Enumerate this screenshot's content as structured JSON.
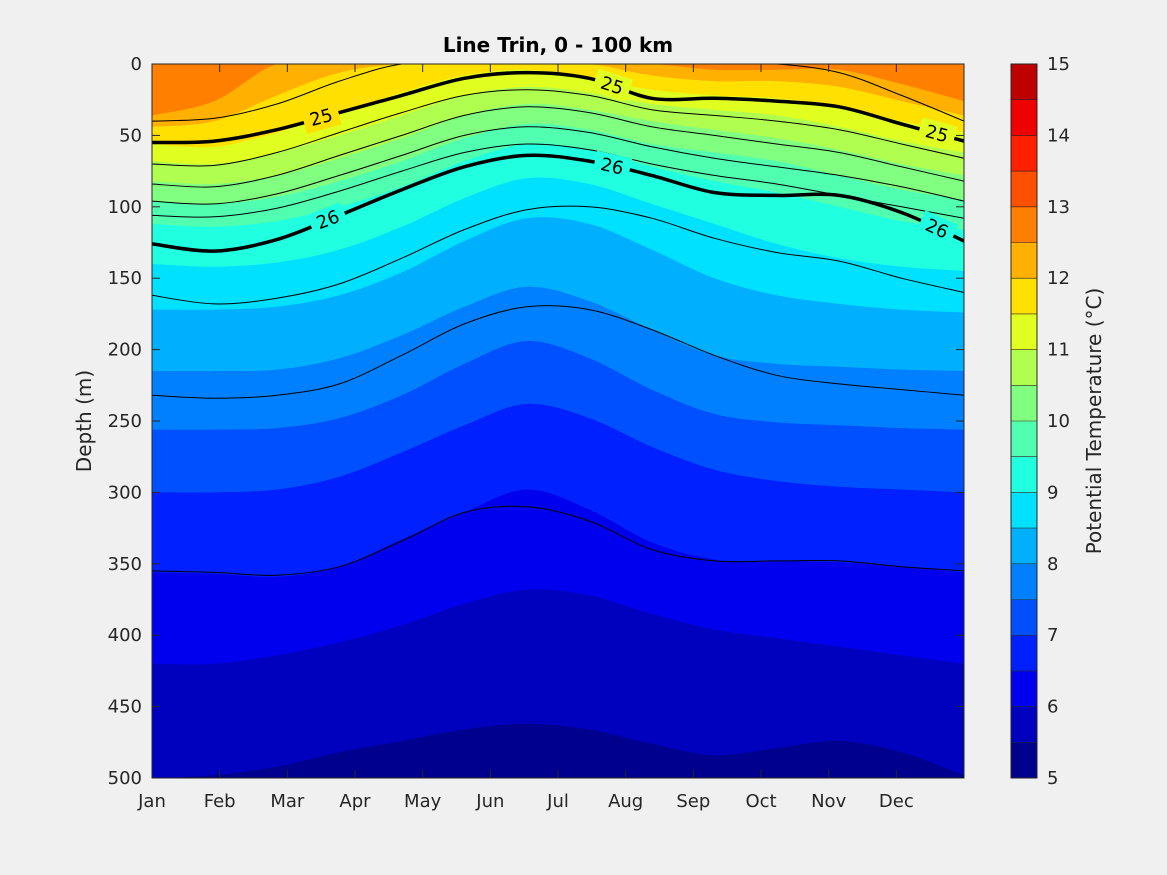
{
  "chart_data": {
    "type": "heatmap",
    "subtype": "filled-contour",
    "title": "Line Trin, 0 - 100 km",
    "ylabel": "Depth (m)",
    "xlabel": "",
    "colorbar_label": "Potential Temperature (°C)",
    "x_ticks": [
      "Jan",
      "Feb",
      "Mar",
      "Apr",
      "May",
      "Jun",
      "Jul",
      "Aug",
      "Sep",
      "Oct",
      "Nov",
      "Dec"
    ],
    "y_ticks": [
      0,
      50,
      100,
      150,
      200,
      250,
      300,
      350,
      400,
      450,
      500
    ],
    "ylim": [
      0,
      500
    ],
    "y_reversed": true,
    "colorbar_ticks": [
      5,
      6,
      7,
      8,
      9,
      10,
      11,
      12,
      13,
      14,
      15
    ],
    "colorbar_range": [
      5,
      15
    ],
    "colormap": "jet",
    "colors": [
      "#00008f",
      "#0000bf",
      "#0000ef",
      "#0020ff",
      "#0050ff",
      "#0080ff",
      "#00b0ff",
      "#00e0ff",
      "#20ffe0",
      "#50ffb0",
      "#80ff80",
      "#b0ff50",
      "#e0ff20",
      "#ffe000",
      "#ffb000",
      "#ff8000",
      "#ff5000",
      "#ff2000",
      "#ef0000",
      "#bf0000"
    ],
    "temperature_isotherms": [
      {
        "value": 5.5,
        "depth": [
          500,
          498,
          492,
          482,
          474,
          466,
          462,
          466,
          476,
          484,
          479,
          474,
          482,
          498
        ]
      },
      {
        "value": 6.0,
        "depth": [
          420,
          420,
          414,
          405,
          393,
          378,
          368,
          372,
          385,
          396,
          402,
          408,
          414,
          420
        ]
      },
      {
        "value": 6.5,
        "depth": [
          356,
          357,
          359,
          352,
          333,
          314,
          298,
          312,
          335,
          347,
          348,
          349,
          352,
          356
        ]
      },
      {
        "value": 7.0,
        "depth": [
          300,
          300,
          298,
          289,
          272,
          253,
          238,
          248,
          268,
          284,
          292,
          296,
          298,
          300
        ]
      },
      {
        "value": 7.5,
        "depth": [
          256,
          256,
          255,
          248,
          232,
          210,
          194,
          206,
          228,
          245,
          251,
          253,
          255,
          256
        ]
      },
      {
        "value": 8.0,
        "depth": [
          215,
          215,
          214,
          206,
          190,
          170,
          156,
          166,
          186,
          204,
          210,
          212,
          214,
          215
        ]
      },
      {
        "value": 8.5,
        "depth": [
          172,
          172,
          170,
          162,
          146,
          124,
          108,
          112,
          130,
          150,
          162,
          168,
          172,
          174
        ]
      },
      {
        "value": 9.0,
        "depth": [
          140,
          142,
          139,
          130,
          114,
          94,
          80,
          84,
          98,
          112,
          126,
          136,
          142,
          145
        ]
      },
      {
        "value": 9.5,
        "depth": [
          112,
          114,
          110,
          100,
          86,
          68,
          56,
          60,
          72,
          82,
          90,
          100,
          110,
          116
        ]
      },
      {
        "value": 10.0,
        "depth": [
          96,
          98,
          93,
          82,
          68,
          52,
          42,
          46,
          56,
          62,
          68,
          78,
          88,
          95
        ]
      },
      {
        "value": 10.5,
        "depth": [
          82,
          84,
          78,
          66,
          52,
          36,
          28,
          32,
          40,
          46,
          52,
          60,
          70,
          78
        ]
      },
      {
        "value": 11.0,
        "depth": [
          68,
          70,
          62,
          50,
          36,
          22,
          16,
          20,
          28,
          32,
          36,
          44,
          54,
          62
        ]
      },
      {
        "value": 11.5,
        "depth": [
          56,
          58,
          48,
          34,
          20,
          8,
          4,
          10,
          18,
          22,
          24,
          30,
          40,
          48
        ]
      },
      {
        "value": 12.0,
        "depth": [
          44,
          40,
          22,
          6,
          0,
          0,
          0,
          0,
          8,
          12,
          12,
          16,
          26,
          36
        ]
      },
      {
        "value": 12.5,
        "depth": [
          36,
          26,
          0,
          0,
          0,
          0,
          0,
          0,
          0,
          4,
          4,
          4,
          14,
          26
        ]
      },
      {
        "value": 13.0,
        "depth": [
          0,
          0,
          0,
          0,
          0,
          0,
          0,
          0,
          0,
          0,
          0,
          0,
          0,
          0
        ]
      }
    ],
    "density_contours": [
      {
        "depth": [
          40,
          38,
          28,
          12,
          0,
          0,
          0,
          0,
          0,
          0,
          0,
          6,
          22,
          40
        ],
        "bold": false
      },
      {
        "depth": [
          55,
          54,
          46,
          34,
          22,
          10,
          6,
          10,
          24,
          24,
          26,
          30,
          42,
          54
        ],
        "bold": true,
        "label": "25",
        "label_month_index": [
          2.5,
          6.8,
          11.6
        ]
      },
      {
        "depth": [
          70,
          71,
          62,
          48,
          34,
          22,
          18,
          22,
          32,
          36,
          40,
          46,
          56,
          66
        ],
        "bold": false
      },
      {
        "depth": [
          84,
          86,
          78,
          64,
          50,
          36,
          30,
          34,
          44,
          50,
          56,
          62,
          72,
          82
        ],
        "bold": false
      },
      {
        "depth": [
          96,
          98,
          91,
          78,
          64,
          50,
          44,
          48,
          58,
          66,
          72,
          78,
          86,
          96
        ],
        "bold": false
      },
      {
        "depth": [
          106,
          107,
          101,
          89,
          75,
          62,
          56,
          60,
          70,
          78,
          84,
          92,
          100,
          108
        ],
        "bold": false
      },
      {
        "depth": [
          126,
          131,
          123,
          106,
          88,
          72,
          64,
          68,
          78,
          90,
          92,
          92,
          104,
          124
        ],
        "bold": true,
        "label": "26",
        "label_month_index": [
          2.6,
          6.8,
          11.6
        ]
      },
      {
        "depth": [
          162,
          168,
          164,
          154,
          136,
          116,
          102,
          100,
          108,
          122,
          132,
          138,
          150,
          160
        ],
        "bold": false
      },
      {
        "depth": [
          232,
          234,
          232,
          224,
          204,
          182,
          170,
          172,
          186,
          204,
          218,
          224,
          228,
          232
        ],
        "bold": false
      },
      {
        "depth": [
          355,
          356,
          358,
          352,
          334,
          314,
          310,
          320,
          340,
          348,
          348,
          348,
          352,
          355
        ],
        "bold": false
      }
    ]
  }
}
